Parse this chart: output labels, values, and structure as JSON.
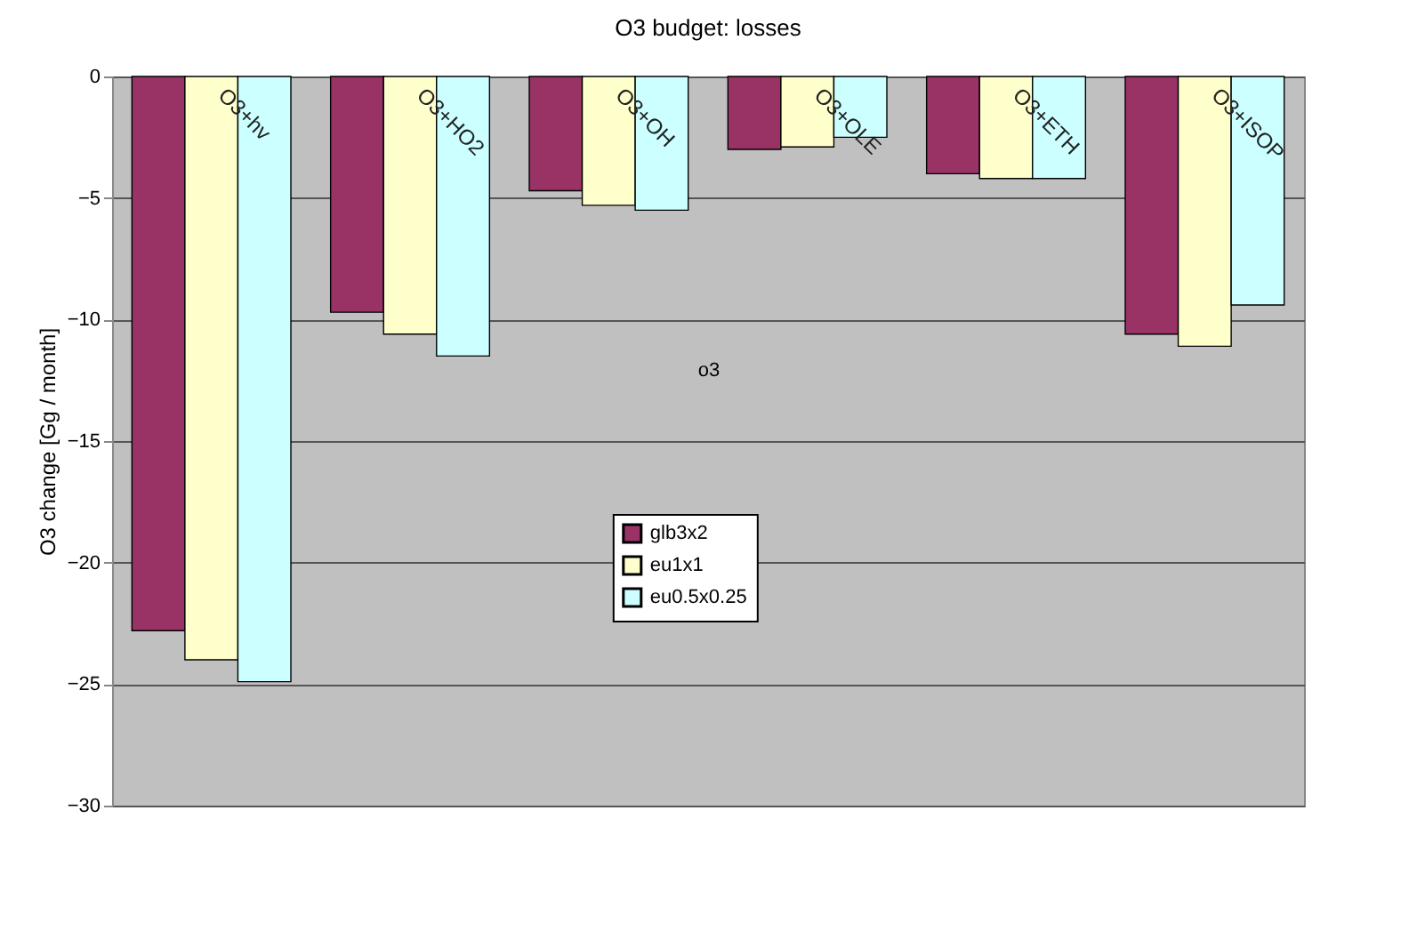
{
  "chart_data": {
    "type": "bar",
    "title": "O3 budget: losses",
    "xlabel": "o3",
    "ylabel": "O3 change [Gg / month]",
    "categories": [
      "O3+hv",
      "O3+HO2",
      "O3+OH",
      "O3+OLE",
      "O3+ETH",
      "O3+ISOP"
    ],
    "series": [
      {
        "name": "glb3x2",
        "color": "#993366",
        "values": [
          -22.8,
          -9.7,
          -4.7,
          -3.0,
          -4.0,
          -10.6
        ]
      },
      {
        "name": "eu1x1",
        "color": "#ffffcc",
        "values": [
          -24.0,
          -10.6,
          -5.3,
          -2.9,
          -4.2,
          -11.1
        ]
      },
      {
        "name": "eu0.5x0.25",
        "color": "#ccffff",
        "values": [
          -24.9,
          -11.5,
          -5.5,
          -2.5,
          -4.2,
          -9.4
        ]
      }
    ],
    "ylim": [
      -30,
      0
    ],
    "yticks": [
      -30,
      -25,
      -20,
      -15,
      -10,
      -5,
      0
    ],
    "grid": "y",
    "legend": "bottom"
  }
}
